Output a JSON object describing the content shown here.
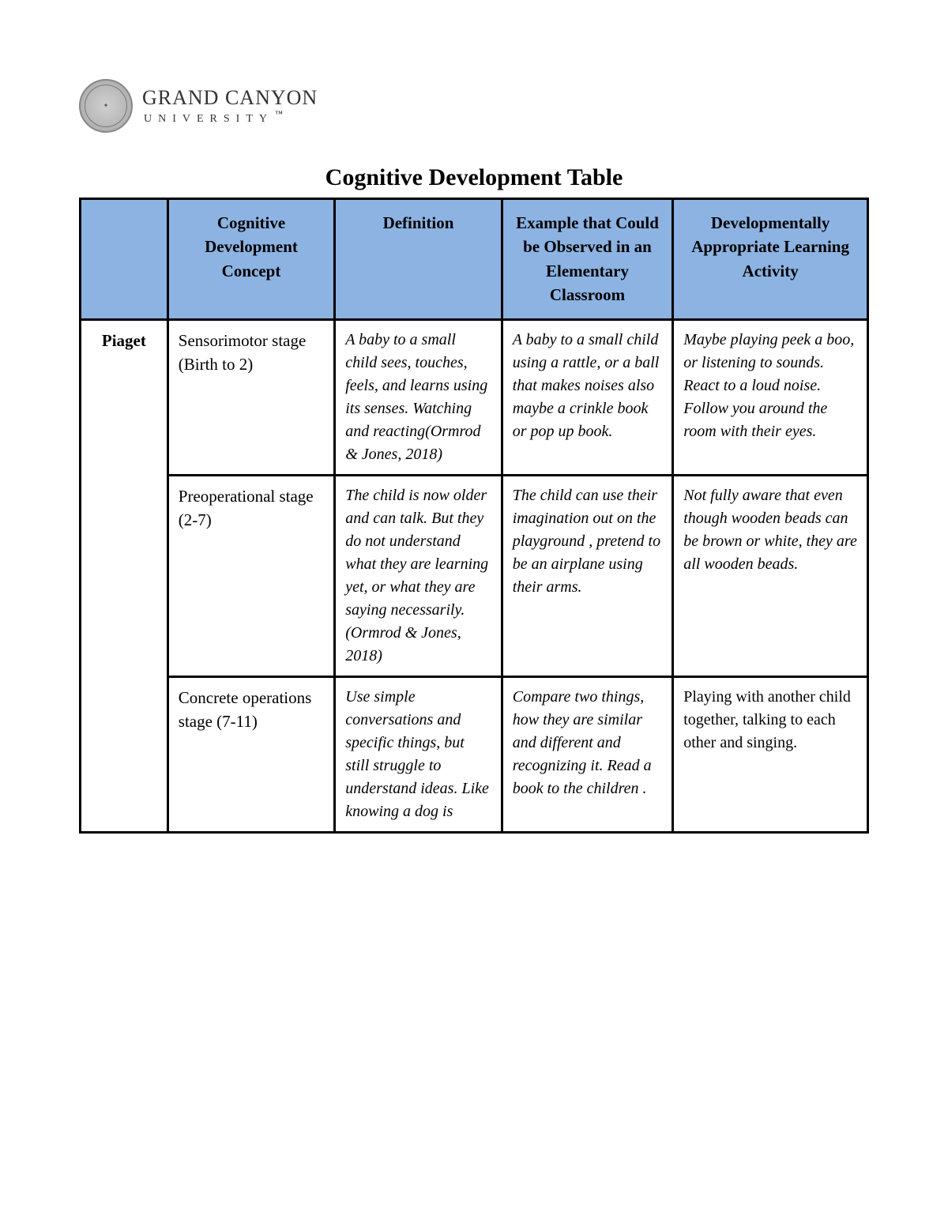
{
  "logo": {
    "main": "GRAND CANYON",
    "sub": "UNIVERSITY",
    "tm": "™"
  },
  "title": "Cognitive Development Table",
  "table": {
    "header_bg": "#8cb3e2",
    "border_color": "#000000",
    "columns": [
      "",
      "Cognitive Development Concept",
      "Definition",
      "Example that Could be Observed in an Elementary Classroom",
      "Developmentally Appropriate Learning Activity"
    ],
    "theorist": "Piaget",
    "rows": [
      {
        "concept": "Sensorimotor stage (Birth to 2)",
        "definition": "A baby to a small child sees, touches, feels, and learns using its senses. Watching and reacting(Ormrod & Jones, 2018)",
        "example": "A baby to a small child using a rattle, or a ball that makes noises also maybe a crinkle book or pop up book.",
        "activity": "Maybe playing peek a boo, or  listening to sounds. React to a loud noise.  Follow you around the room with their eyes.",
        "activity_italic": true
      },
      {
        "concept": "Preoperational stage\n(2-7)",
        "definition": "The child is now older and can talk. But they do not understand what they are learning yet, or what they are saying necessarily.(Ormrod & Jones, 2018)",
        "example": "The child can use their imagination out on the playground , pretend to be an airplane using their arms.",
        "activity": "Not fully aware that even though wooden beads can be brown or white, they are all wooden beads.",
        "activity_italic": true
      },
      {
        "concept": "Concrete operations stage (7-11)",
        "definition": "Use simple conversations and specific things, but still struggle to understand ideas. Like knowing a dog is",
        "example": "Compare two things,  how they are similar and different and recognizing it. Read a book to the children .",
        "activity": "Playing with another child together, talking to each other and singing.",
        "activity_italic": false
      }
    ]
  }
}
